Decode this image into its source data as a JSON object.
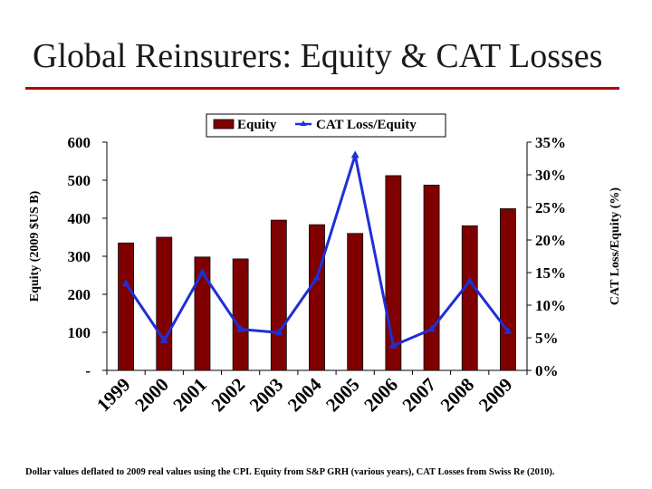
{
  "slide": {
    "title": "Global Reinsurers: Equity & CAT Losses",
    "footnote": "Dollar values deflated to 2009 real values using the CPI. Equity from S&P GRH (various years), CAT Losses from Swiss Re (2010)."
  },
  "colors": {
    "title_rule": "#b30000",
    "bar_fill": "#800000",
    "line": "#1f2fd6"
  },
  "chart_data": {
    "type": "bar+line",
    "title": "",
    "categories": [
      "1999",
      "2000",
      "2001",
      "2002",
      "2003",
      "2004",
      "2005",
      "2006",
      "2007",
      "2008",
      "2009"
    ],
    "series": [
      {
        "name": "Equity",
        "type": "bar",
        "axis": "left",
        "values": [
          335,
          350,
          298,
          293,
          395,
          383,
          360,
          512,
          487,
          380,
          425
        ]
      },
      {
        "name": "CAT Loss/Equity",
        "type": "line",
        "axis": "right",
        "values": [
          13.3,
          4.6,
          15.0,
          6.3,
          5.8,
          14.2,
          33.0,
          3.8,
          6.3,
          13.7,
          6.0
        ]
      }
    ],
    "ylabel": "Equity (2009 $US B)",
    "y2label": "CAT Loss/Equity (%)",
    "ylim": [
      0,
      600
    ],
    "y2lim": [
      0,
      35
    ],
    "y_ticks": [
      {
        "v": 0,
        "label": "-"
      },
      {
        "v": 100,
        "label": "100"
      },
      {
        "v": 200,
        "label": "200"
      },
      {
        "v": 300,
        "label": "300"
      },
      {
        "v": 400,
        "label": "400"
      },
      {
        "v": 500,
        "label": "500"
      },
      {
        "v": 600,
        "label": "600"
      }
    ],
    "y2_ticks": [
      {
        "v": 0,
        "label": "0%"
      },
      {
        "v": 5,
        "label": "5%"
      },
      {
        "v": 10,
        "label": "10%"
      },
      {
        "v": 15,
        "label": "15%"
      },
      {
        "v": 20,
        "label": "20%"
      },
      {
        "v": 25,
        "label": "25%"
      },
      {
        "v": 30,
        "label": "30%"
      },
      {
        "v": 35,
        "label": "35%"
      }
    ],
    "legend": {
      "position": "top-center",
      "entries": [
        "Equity",
        "CAT Loss/Equity"
      ]
    },
    "grid": false
  }
}
